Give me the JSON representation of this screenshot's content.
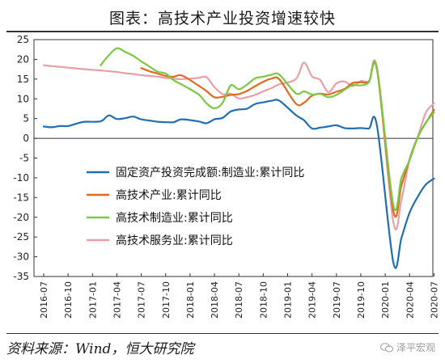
{
  "title": "图表：高技术产业投资增速较快",
  "source": "资料来源：Wind，恒大研究院",
  "watermark": "泽平宏观",
  "chart_data": {
    "type": "line",
    "title": "图表：高技术产业投资增速较快",
    "xlabel": "",
    "ylabel": "",
    "ylim": [
      -35,
      25
    ],
    "yticks": [
      25,
      20,
      15,
      10,
      5,
      0,
      -5,
      -10,
      -15,
      -20,
      -25,
      -30,
      -35
    ],
    "grid": false,
    "legend_position": "center-left",
    "x_ticks": [
      "2016-07",
      "2016-10",
      "2017-01",
      "2017-04",
      "2017-07",
      "2017-10",
      "2018-01",
      "2018-04",
      "2018-07",
      "2018-10",
      "2019-01",
      "2019-04",
      "2019-07",
      "2019-10",
      "2020-01",
      "2020-04",
      "2020-07"
    ],
    "series": [
      {
        "name": "固定资产投资完成额:制造业:累计同比",
        "color": "#1f6fb2",
        "points": [
          [
            "2016-07",
            3.0
          ],
          [
            "2016-08",
            2.8
          ],
          [
            "2016-09",
            3.1
          ],
          [
            "2016-10",
            3.1
          ],
          [
            "2016-11",
            3.7
          ],
          [
            "2016-12",
            4.2
          ],
          [
            "2017-02",
            4.3
          ],
          [
            "2017-03",
            5.8
          ],
          [
            "2017-04",
            4.9
          ],
          [
            "2017-05",
            5.1
          ],
          [
            "2017-06",
            5.5
          ],
          [
            "2017-07",
            4.8
          ],
          [
            "2017-08",
            4.5
          ],
          [
            "2017-09",
            4.2
          ],
          [
            "2017-10",
            4.1
          ],
          [
            "2017-11",
            4.1
          ],
          [
            "2017-12",
            4.8
          ],
          [
            "2018-02",
            4.3
          ],
          [
            "2018-03",
            3.8
          ],
          [
            "2018-04",
            4.8
          ],
          [
            "2018-05",
            5.2
          ],
          [
            "2018-06",
            6.8
          ],
          [
            "2018-07",
            7.3
          ],
          [
            "2018-08",
            7.5
          ],
          [
            "2018-09",
            8.7
          ],
          [
            "2018-10",
            9.1
          ],
          [
            "2018-11",
            9.5
          ],
          [
            "2018-12",
            9.5
          ],
          [
            "2019-02",
            5.9
          ],
          [
            "2019-03",
            4.6
          ],
          [
            "2019-04",
            2.5
          ],
          [
            "2019-05",
            2.7
          ],
          [
            "2019-06",
            3.0
          ],
          [
            "2019-07",
            3.3
          ],
          [
            "2019-08",
            2.6
          ],
          [
            "2019-09",
            2.5
          ],
          [
            "2019-10",
            2.6
          ],
          [
            "2019-11",
            2.5
          ],
          [
            "2019-12",
            3.1
          ],
          [
            "2020-02",
            -31.5
          ],
          [
            "2020-03",
            -25.2
          ],
          [
            "2020-04",
            -18.8
          ],
          [
            "2020-05",
            -14.8
          ],
          [
            "2020-06",
            -11.7
          ],
          [
            "2020-07",
            -10.2
          ]
        ]
      },
      {
        "name": "高技术产业:累计同比",
        "color": "#e06a1e",
        "points": [
          [
            "2017-07",
            17.8
          ],
          [
            "2017-08",
            17.0
          ],
          [
            "2017-09",
            16.4
          ],
          [
            "2017-10",
            15.8
          ],
          [
            "2017-11",
            15.6
          ],
          [
            "2017-12",
            15.9
          ],
          [
            "2018-02",
            13.4
          ],
          [
            "2018-03",
            12.0
          ],
          [
            "2018-04",
            10.4
          ],
          [
            "2018-05",
            10.5
          ],
          [
            "2018-06",
            11.0
          ],
          [
            "2018-07",
            11.2
          ],
          [
            "2018-08",
            12.0
          ],
          [
            "2018-09",
            13.2
          ],
          [
            "2018-10",
            14.3
          ],
          [
            "2018-11",
            15.1
          ],
          [
            "2018-12",
            14.9
          ],
          [
            "2019-02",
            8.8
          ],
          [
            "2019-03",
            9.0
          ],
          [
            "2019-04",
            10.8
          ],
          [
            "2019-05",
            11.3
          ],
          [
            "2019-06",
            11.1
          ],
          [
            "2019-07",
            11.8
          ],
          [
            "2019-08",
            12.5
          ],
          [
            "2019-09",
            14.0
          ],
          [
            "2019-10",
            14.2
          ],
          [
            "2019-11",
            14.3
          ],
          [
            "2019-12",
            17.3
          ],
          [
            "2020-02",
            -18.5
          ],
          [
            "2020-03",
            -11.9
          ],
          [
            "2020-04",
            -5.3
          ],
          [
            "2020-05",
            0.3
          ],
          [
            "2020-06",
            3.9
          ],
          [
            "2020-07",
            7.2
          ]
        ]
      },
      {
        "name": "高技术制造业:累计同比",
        "color": "#7ac943",
        "points": [
          [
            "2017-02",
            18.5
          ],
          [
            "2017-03",
            21.0
          ],
          [
            "2017-04",
            22.8
          ],
          [
            "2017-05",
            21.9
          ],
          [
            "2017-06",
            20.9
          ],
          [
            "2017-07",
            19.5
          ],
          [
            "2017-08",
            18.2
          ],
          [
            "2017-09",
            16.9
          ],
          [
            "2017-10",
            16.4
          ],
          [
            "2017-11",
            14.7
          ],
          [
            "2017-12",
            13.6
          ],
          [
            "2018-02",
            11.2
          ],
          [
            "2018-03",
            8.9
          ],
          [
            "2018-04",
            7.6
          ],
          [
            "2018-05",
            9.0
          ],
          [
            "2018-06",
            13.4
          ],
          [
            "2018-07",
            12.4
          ],
          [
            "2018-08",
            13.6
          ],
          [
            "2018-09",
            15.2
          ],
          [
            "2018-10",
            15.6
          ],
          [
            "2018-11",
            16.1
          ],
          [
            "2018-12",
            16.1
          ],
          [
            "2019-02",
            11.4
          ],
          [
            "2019-03",
            11.9
          ],
          [
            "2019-04",
            11.1
          ],
          [
            "2019-05",
            11.3
          ],
          [
            "2019-06",
            10.4
          ],
          [
            "2019-07",
            11.0
          ],
          [
            "2019-08",
            12.3
          ],
          [
            "2019-09",
            13.5
          ],
          [
            "2019-10",
            13.4
          ],
          [
            "2019-11",
            14.2
          ],
          [
            "2019-12",
            17.7
          ],
          [
            "2020-02",
            -17.0
          ],
          [
            "2020-03",
            -10.0
          ],
          [
            "2020-04",
            -5.5
          ],
          [
            "2020-05",
            0.2
          ],
          [
            "2020-06",
            4.0
          ],
          [
            "2020-07",
            6.5
          ]
        ]
      },
      {
        "name": "高技术服务业:累计同比",
        "color": "#e8a0a6",
        "points": [
          [
            "2016-07",
            18.5
          ],
          [
            "2016-08",
            18.3
          ],
          [
            "2016-09",
            18.1
          ],
          [
            "2016-10",
            17.9
          ],
          [
            "2016-11",
            17.7
          ],
          [
            "2016-12",
            17.5
          ],
          [
            "2017-02",
            17.2
          ],
          [
            "2017-03",
            17.0
          ],
          [
            "2017-04",
            16.8
          ],
          [
            "2017-05",
            16.5
          ],
          [
            "2017-06",
            16.3
          ],
          [
            "2017-07",
            16.0
          ],
          [
            "2017-08",
            15.8
          ],
          [
            "2017-09",
            15.6
          ],
          [
            "2017-10",
            15.3
          ],
          [
            "2017-11",
            15.1
          ],
          [
            "2017-12",
            15.0
          ],
          [
            "2018-02",
            15.3
          ],
          [
            "2018-03",
            15.5
          ],
          [
            "2018-04",
            13.0
          ],
          [
            "2018-05",
            11.2
          ],
          [
            "2018-06",
            11.3
          ],
          [
            "2018-07",
            10.1
          ],
          [
            "2018-08",
            10.4
          ],
          [
            "2018-09",
            11.0
          ],
          [
            "2018-10",
            11.9
          ],
          [
            "2018-11",
            12.7
          ],
          [
            "2018-12",
            13.7
          ],
          [
            "2019-02",
            15.0
          ],
          [
            "2019-03",
            19.2
          ],
          [
            "2019-04",
            15.7
          ],
          [
            "2019-05",
            14.8
          ],
          [
            "2019-06",
            11.7
          ],
          [
            "2019-07",
            13.9
          ],
          [
            "2019-08",
            14.4
          ],
          [
            "2019-09",
            13.2
          ],
          [
            "2019-10",
            14.5
          ],
          [
            "2019-11",
            14.5
          ],
          [
            "2019-12",
            17.7
          ],
          [
            "2020-02",
            -21.3
          ],
          [
            "2020-03",
            -15.5
          ],
          [
            "2020-04",
            -5.3
          ],
          [
            "2020-05",
            0.3
          ],
          [
            "2020-06",
            6.5
          ],
          [
            "2020-07",
            8.8
          ]
        ]
      }
    ]
  }
}
